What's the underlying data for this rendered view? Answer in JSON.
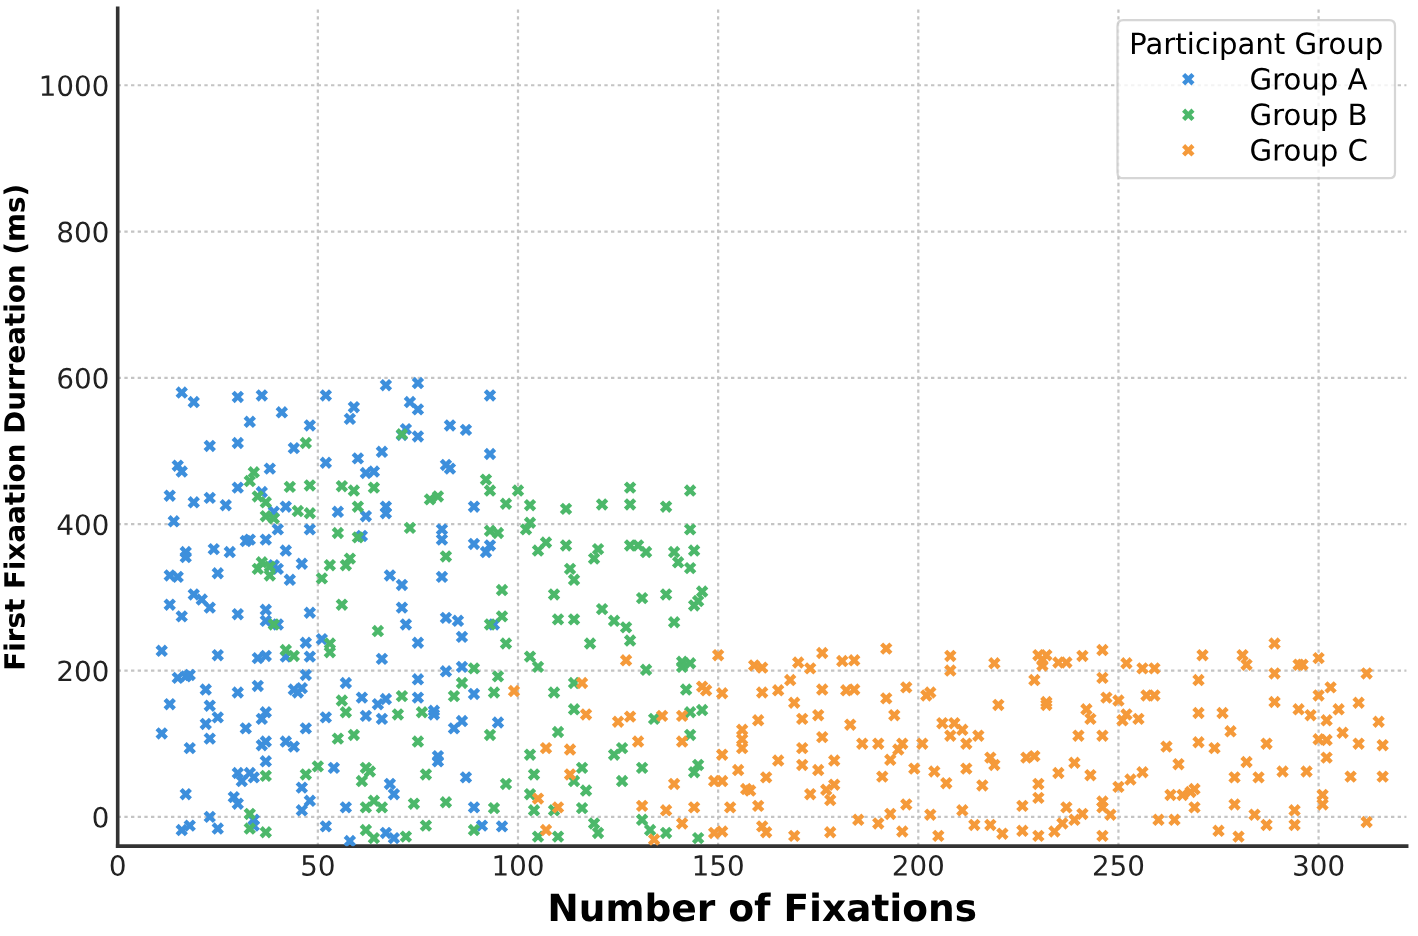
{
  "chart_data": {
    "type": "scatter",
    "xlabel": "Number of Fixations",
    "ylabel": "First Fixaation Durreation (ms)",
    "legend_title": "Participant Group",
    "xlim": [
      0,
      322
    ],
    "ylim": [
      -40,
      1105
    ],
    "xticks": [
      0,
      50,
      100,
      150,
      200,
      250,
      300
    ],
    "yticks": [
      0,
      200,
      400,
      600,
      800,
      1000
    ],
    "grid": true,
    "legend": "top right",
    "marker": "cross",
    "series": [
      {
        "name": "Group A",
        "color": "#3d8fdc",
        "x": [
          16,
          19,
          30,
          36,
          52,
          67,
          75,
          73,
          75,
          93,
          41,
          33,
          59,
          58,
          48,
          66,
          71,
          72,
          75,
          83,
          87,
          93,
          23,
          30,
          44,
          15,
          16,
          38,
          52,
          60,
          62,
          64,
          82,
          83,
          30,
          36,
          13,
          19,
          23,
          27,
          42,
          67,
          89,
          14,
          17,
          17,
          13,
          15,
          13,
          16,
          19,
          21,
          23,
          24,
          25,
          28,
          30,
          32,
          33,
          37,
          39,
          40,
          39,
          40,
          37,
          37,
          40,
          42,
          43,
          46,
          48,
          48,
          47,
          48,
          47,
          51,
          11,
          13,
          11,
          15,
          17,
          18,
          18,
          17,
          16,
          18,
          22,
          22,
          23,
          23,
          25,
          25,
          23,
          25,
          29,
          30,
          30,
          31,
          30,
          32,
          33,
          34,
          34,
          34,
          35,
          37,
          35,
          36,
          37,
          36,
          37,
          37,
          42,
          42,
          44,
          44,
          45,
          46,
          46,
          46,
          47,
          48,
          52,
          52,
          54,
          57,
          57,
          58,
          62,
          61,
          66,
          65,
          66,
          67,
          68,
          69,
          67,
          69,
          71,
          72,
          68,
          67,
          61,
          55,
          62,
          71,
          75,
          75,
          75,
          79,
          79,
          80,
          80,
          81,
          81,
          81,
          82,
          82,
          84,
          86,
          87,
          86,
          85,
          86,
          89,
          89,
          89,
          91,
          92,
          93,
          94,
          95,
          96
        ],
        "values": [
          580,
          567,
          574,
          576,
          576,
          590,
          593,
          567,
          557,
          576,
          553,
          540,
          560,
          544,
          535,
          499,
          522,
          530,
          520,
          535,
          529,
          496,
          507,
          511,
          504,
          480,
          472,
          476,
          484,
          490,
          470,
          472,
          481,
          476,
          450,
          444,
          439,
          430,
          436,
          426,
          424,
          424,
          424,
          404,
          362,
          355,
          330,
          328,
          290,
          274,
          304,
          297,
          286,
          366,
          333,
          362,
          277,
          377,
          379,
          379,
          417,
          393,
          344,
          339,
          283,
          268,
          263,
          364,
          324,
          346,
          393,
          279,
          238,
          219,
          194,
          243,
          227,
          154,
          114,
          190,
          192,
          194,
          94,
          31,
          -18,
          -12,
          174,
          127,
          107,
          152,
          136,
          221,
          0,
          -16,
          27,
          18,
          60,
          49,
          170,
          121,
          60,
          54,
          -4,
          -12,
          217,
          220,
          179,
          134,
          143,
          98,
          103,
          76,
          219,
          103,
          96,
          174,
          170,
          176,
          40,
          9,
          121,
          22,
          -13,
          136,
          67,
          13,
          183,
          -33,
          138,
          163,
          216,
          154,
          134,
          161,
          45,
          31,
          -22,
          -29,
          286,
          263,
          330,
          415,
          384,
          417,
          411,
          317,
          238,
          188,
          163,
          145,
          140,
          83,
          76,
          328,
          393,
          379,
          272,
          199,
          121,
          131,
          54,
          246,
          268,
          205,
          373,
          168,
          13,
          -12,
          362,
          371,
          263,
          129,
          -13
        ]
      },
      {
        "name": "Group B",
        "color": "#4cb86a",
        "x": [
          33,
          34,
          43,
          47,
          48,
          56,
          59,
          64,
          71,
          78,
          80,
          92,
          93,
          97,
          100,
          103,
          112,
          121,
          128,
          128,
          137,
          143,
          37,
          35,
          37,
          39,
          45,
          48,
          60,
          60,
          55,
          58,
          53,
          57,
          35,
          36,
          38,
          38,
          39,
          42,
          44,
          51,
          53,
          53,
          56,
          56,
          57,
          59,
          61,
          63,
          64,
          62,
          62,
          64,
          65,
          71,
          70,
          75,
          76,
          77,
          72,
          77,
          73,
          82,
          84,
          86,
          89,
          93,
          95,
          93,
          96,
          96,
          97,
          95,
          94,
          93,
          94,
          97,
          89,
          102,
          103,
          105,
          103,
          107,
          109,
          105,
          103,
          104,
          103,
          104,
          105,
          110,
          109,
          110,
          109,
          110,
          112,
          113,
          114,
          114,
          114,
          114,
          114,
          116,
          117,
          116,
          118,
          119,
          120,
          119,
          120,
          121,
          124,
          126,
          126,
          124,
          127,
          128,
          128,
          130,
          132,
          131,
          132,
          134,
          131,
          131,
          133,
          137,
          137,
          139,
          140,
          139,
          141,
          141,
          143,
          142,
          143,
          143,
          144,
          145,
          143,
          144,
          145,
          146,
          145,
          143,
          144,
          146,
          33,
          33,
          37,
          37,
          47,
          50,
          55,
          62,
          66,
          74,
          82
        ],
        "values": [
          459,
          471,
          451,
          511,
          453,
          452,
          446,
          450,
          523,
          434,
          438,
          461,
          446,
          428,
          446,
          426,
          421,
          427,
          450,
          427,
          424,
          446,
          430,
          438,
          411,
          408,
          418,
          415,
          424,
          382,
          388,
          353,
          344,
          344,
          339,
          348,
          342,
          330,
          263,
          228,
          220,
          326,
          237,
          225,
          290,
          159,
          143,
          112,
          49,
          62,
          22,
          13,
          -18,
          -29,
          254,
          165,
          140,
          103,
          143,
          58,
          -27,
          -12,
          395,
          356,
          165,
          183,
          203,
          391,
          388,
          263,
          310,
          274,
          237,
          192,
          170,
          112,
          12,
          45,
          -18,
          393,
          402,
          364,
          219,
          375,
          304,
          205,
          85,
          58,
          31,
          9,
          -27,
          -27,
          9,
          116,
          170,
          270,
          371,
          339,
          324,
          270,
          183,
          147,
          49,
          67,
          36,
          12,
          237,
          -9,
          -22,
          353,
          366,
          284,
          268,
          49,
          94,
          85,
          259,
          241,
          371,
          371,
          362,
          299,
          201,
          134,
          67,
          -4,
          -18,
          -22,
          304,
          362,
          348,
          266,
          212,
          205,
          210,
          174,
          143,
          112,
          61,
          71,
          393,
          364,
          295,
          308,
          -29,
          340,
          289,
          146,
          4,
          -16,
          -21,
          56,
          58,
          69,
          107,
          67,
          13,
          18,
          20
        ]
      },
      {
        "name": "Group C",
        "color": "#f59a3a",
        "x": [
          150,
          147,
          151,
          151,
          151,
          153,
          151,
          141,
          155,
          156,
          156,
          156,
          157,
          158,
          160,
          161,
          162,
          160,
          159,
          161,
          161,
          162,
          165,
          165,
          168,
          169,
          169,
          171,
          170,
          171,
          171,
          173,
          173,
          175,
          175,
          176,
          176,
          176,
          177,
          178,
          178,
          179,
          179,
          181,
          182,
          184,
          184,
          183,
          185,
          186,
          190,
          190,
          191,
          192,
          192,
          193,
          193,
          194,
          195,
          196,
          196,
          197,
          197,
          199,
          201,
          202,
          203,
          203,
          204,
          205,
          206,
          207,
          208,
          208,
          208,
          209,
          211,
          211,
          212,
          212,
          214,
          215,
          216,
          218,
          218,
          219,
          220,
          219,
          221,
          226,
          226,
          227,
          229,
          229,
          230,
          231,
          232,
          231,
          230,
          230,
          230,
          232,
          232,
          234,
          235,
          235,
          237,
          237,
          236,
          239,
          239,
          240,
          241,
          243,
          243,
          242,
          241,
          246,
          246,
          246,
          246,
          246,
          246,
          247,
          250,
          248,
          250,
          251,
          252,
          252,
          253,
          255,
          256,
          256,
          259,
          257,
          259,
          260,
          262,
          263,
          264,
          265,
          266,
          268,
          269,
          269,
          270,
          270,
          271,
          270,
          274,
          275,
          276,
          278,
          279,
          279,
          280,
          281,
          282,
          282,
          284,
          285,
          287,
          287,
          289,
          289,
          289,
          291,
          294,
          294,
          295,
          295,
          296,
          297,
          298,
          300,
          300,
          300,
          301,
          301,
          302,
          302,
          303,
          302,
          305,
          306,
          308,
          310,
          310,
          312,
          312,
          315,
          316,
          316,
          99,
          105,
          107,
          113,
          113,
          110,
          107,
          116,
          117,
          127,
          125,
          128,
          130,
          131,
          136,
          137,
          134,
          139,
          141,
          141,
          144,
          146,
          149,
          149
        ],
        "values": [
          221,
          173,
          169,
          85,
          49,
          13,
          -20,
          -9,
          64,
          119,
          106,
          94,
          38,
          36,
          15,
          -13,
          -21,
          132,
          207,
          204,
          170,
          54,
          173,
          77,
          187,
          -26,
          156,
          134,
          211,
          94,
          71,
          31,
          203,
          139,
          64,
          224,
          174,
          109,
          37,
          -21,
          23,
          77,
          44,
          213,
          173,
          214,
          174,
          126,
          -4,
          100,
          -9,
          100,
          55,
          230,
          162,
          78,
          4,
          139,
          92,
          100,
          -20,
          17,
          177,
          66,
          100,
          166,
          170,
          3,
          62,
          -26,
          128,
          46,
          220,
          200,
          111,
          128,
          9,
          119,
          66,
          100,
          -11,
          111,
          43,
          81,
          -11,
          210,
          153,
          71,
          -23,
          -19,
          15,
          81,
          83,
          187,
          221,
          214,
          221,
          207,
          45,
          26,
          -26,
          157,
          153,
          -20,
          211,
          60,
          211,
          13,
          -9,
          74,
          -4,
          111,
          220,
          134,
          57,
          147,
          4,
          228,
          190,
          111,
          21,
          13,
          -26,
          163,
          159,
          3,
          41,
          132,
          210,
          140,
          51,
          134,
          61,
          203,
          203,
          166,
          166,
          -4,
          96,
          30,
          -4,
          72,
          30,
          34,
          38,
          13,
          102,
          187,
          221,
          142,
          94,
          -19,
          142,
          117,
          54,
          17,
          -27,
          221,
          208,
          75,
          3,
          54,
          100,
          -11,
          237,
          196,
          157,
          62,
          9,
          -11,
          147,
          208,
          208,
          62,
          139,
          217,
          166,
          106,
          30,
          17,
          81,
          132,
          177,
          105,
          147,
          115,
          55,
          100,
          156,
          196,
          -7,
          130,
          98,
          55,
          172,
          25,
          94,
          92,
          58,
          13,
          -18,
          183,
          140,
          214,
          130,
          137,
          103,
          15,
          138,
          9,
          -31,
          45,
          138,
          103,
          13,
          178,
          -22,
          49
        ]
      }
    ]
  }
}
